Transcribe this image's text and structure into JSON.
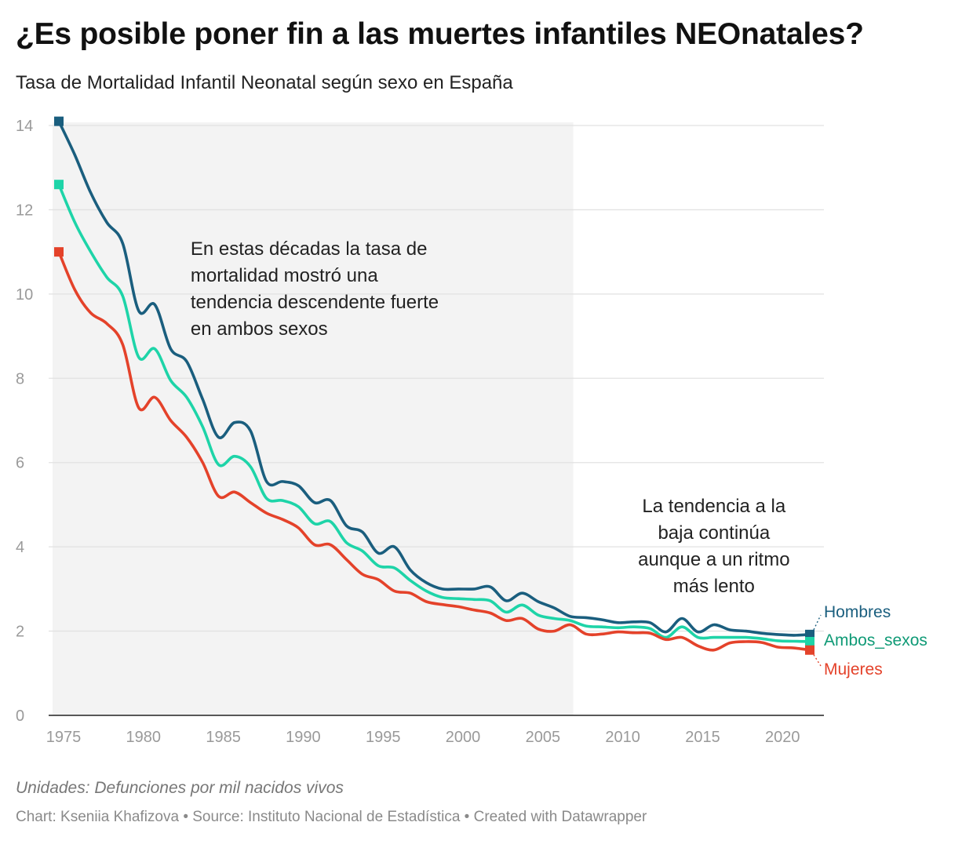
{
  "header": {
    "title": "¿Es posible poner fin a las muertes infantiles NEOnatales?",
    "subtitle": "Tasa de Mortalidad Infantil Neonatal según sexo en España"
  },
  "footer": {
    "notes": "Unidades: Defunciones por mil nacidos vivos",
    "byline": "Chart: Kseniia Khafizova • Source: Instituto Nacional de Estadística • Created with Datawrapper"
  },
  "chart_data": {
    "type": "line",
    "title": "¿Es posible poner fin a las muertes infantiles NEOnatales?",
    "subtitle": "Tasa de Mortalidad Infantil Neonatal según sexo en España",
    "xlabel": "",
    "ylabel": "",
    "xlim": [
      1975,
      2022
    ],
    "ylim": [
      0,
      14
    ],
    "x_ticks": [
      1975,
      1980,
      1985,
      1990,
      1995,
      2000,
      2005,
      2010,
      2015,
      2020
    ],
    "y_ticks": [
      0,
      2,
      4,
      6,
      8,
      10,
      12,
      14
    ],
    "grid": true,
    "shaded_range": [
      1975,
      2007.2
    ],
    "x": [
      1975,
      1976,
      1977,
      1978,
      1979,
      1980,
      1981,
      1982,
      1983,
      1984,
      1985,
      1986,
      1987,
      1988,
      1989,
      1990,
      1991,
      1992,
      1993,
      1994,
      1995,
      1996,
      1997,
      1998,
      1999,
      2000,
      2001,
      2002,
      2003,
      2004,
      2005,
      2006,
      2007,
      2008,
      2009,
      2010,
      2011,
      2012,
      2013,
      2014,
      2015,
      2016,
      2017,
      2018,
      2019,
      2020,
      2021,
      2022
    ],
    "series": [
      {
        "name": "Hombres",
        "color": "#1a5e7e",
        "values": [
          14.1,
          13.3,
          12.4,
          11.7,
          11.2,
          9.6,
          9.75,
          8.7,
          8.4,
          7.5,
          6.6,
          6.95,
          6.75,
          5.55,
          5.55,
          5.45,
          5.05,
          5.1,
          4.5,
          4.35,
          3.85,
          4.0,
          3.45,
          3.15,
          3.0,
          3.0,
          3.0,
          3.05,
          2.72,
          2.9,
          2.7,
          2.55,
          2.35,
          2.32,
          2.27,
          2.2,
          2.22,
          2.2,
          1.98,
          2.3,
          1.98,
          2.15,
          2.03,
          2.0,
          1.95,
          1.92,
          1.9,
          1.92
        ]
      },
      {
        "name": "Ambos_sexos",
        "color": "#1ed4a8",
        "values": [
          12.6,
          11.7,
          11.0,
          10.4,
          9.95,
          8.5,
          8.7,
          7.95,
          7.55,
          6.85,
          5.95,
          6.15,
          5.9,
          5.15,
          5.1,
          4.95,
          4.55,
          4.6,
          4.1,
          3.9,
          3.55,
          3.5,
          3.2,
          2.95,
          2.8,
          2.77,
          2.75,
          2.72,
          2.45,
          2.62,
          2.38,
          2.3,
          2.25,
          2.12,
          2.1,
          2.08,
          2.1,
          2.06,
          1.85,
          2.1,
          1.85,
          1.85,
          1.85,
          1.85,
          1.82,
          1.77,
          1.76,
          1.75
        ]
      },
      {
        "name": "Mujeres",
        "color": "#e4422a",
        "values": [
          11.0,
          10.1,
          9.55,
          9.3,
          8.8,
          7.3,
          7.55,
          7.0,
          6.6,
          6.0,
          5.2,
          5.3,
          5.05,
          4.8,
          4.65,
          4.45,
          4.05,
          4.05,
          3.7,
          3.35,
          3.22,
          2.95,
          2.9,
          2.7,
          2.63,
          2.58,
          2.5,
          2.43,
          2.25,
          2.3,
          2.05,
          2.0,
          2.15,
          1.93,
          1.93,
          1.98,
          1.96,
          1.95,
          1.8,
          1.85,
          1.65,
          1.55,
          1.72,
          1.75,
          1.73,
          1.62,
          1.6,
          1.55
        ]
      }
    ],
    "annotations": [
      {
        "text": [
          "En estas décadas la tasa de",
          "mortalidad mostró una",
          "tendencia descendente fuerte",
          "en ambos sexos"
        ],
        "x": 1983,
        "y": 11.0,
        "align": "left"
      },
      {
        "text": [
          "La tendencia a la",
          "baja continúa",
          "aunque a un ritmo",
          "más lento"
        ],
        "x": 2016,
        "y": 4.9,
        "align": "center"
      }
    ],
    "legend": "direct-labels-right"
  }
}
